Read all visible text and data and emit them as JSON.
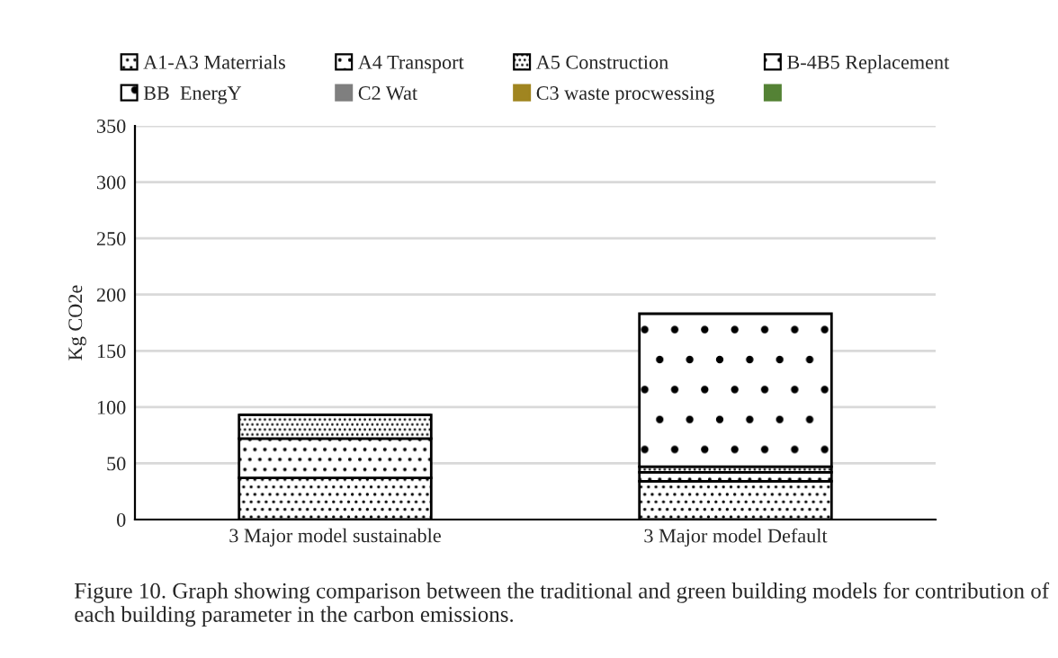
{
  "chart_data": {
    "type": "bar",
    "stacked": true,
    "ylabel": "Kg CO2e",
    "categories": [
      "3 Major model sustainable",
      "3 Major model Default"
    ],
    "series": [
      {
        "name": "A1-A3 Materrials",
        "color": "#000000",
        "values": [
          37,
          34
        ]
      },
      {
        "name": "A4 Transport",
        "color": "#000000",
        "values": [
          35,
          8
        ]
      },
      {
        "name": "A5 Construction",
        "color": "#000000",
        "values": [
          21,
          5
        ]
      },
      {
        "name": "B-4B5 Replacement",
        "color": "#000000",
        "values": [
          null,
          null
        ]
      },
      {
        "name": "BB  EnergY",
        "color": "#000000",
        "values": [
          0,
          136
        ]
      },
      {
        "name": "C2 Wat",
        "color": "#7f7f7f",
        "values": [
          null,
          null
        ]
      },
      {
        "name": "C3 waste procwessing",
        "color": "#a08520",
        "values": [
          null,
          null
        ]
      },
      {
        "color": "#548235",
        "values": [
          null,
          null
        ]
      }
    ],
    "ylim": [
      0,
      350
    ],
    "yticks": [
      0,
      50,
      100,
      150,
      200,
      250,
      300,
      350
    ],
    "grid": "y",
    "legend": "top",
    "annotations": [
      "Figure 10. Graph showing comparison between the traditional and green building models for contribution of each building parameter in the carbon emissions."
    ]
  }
}
